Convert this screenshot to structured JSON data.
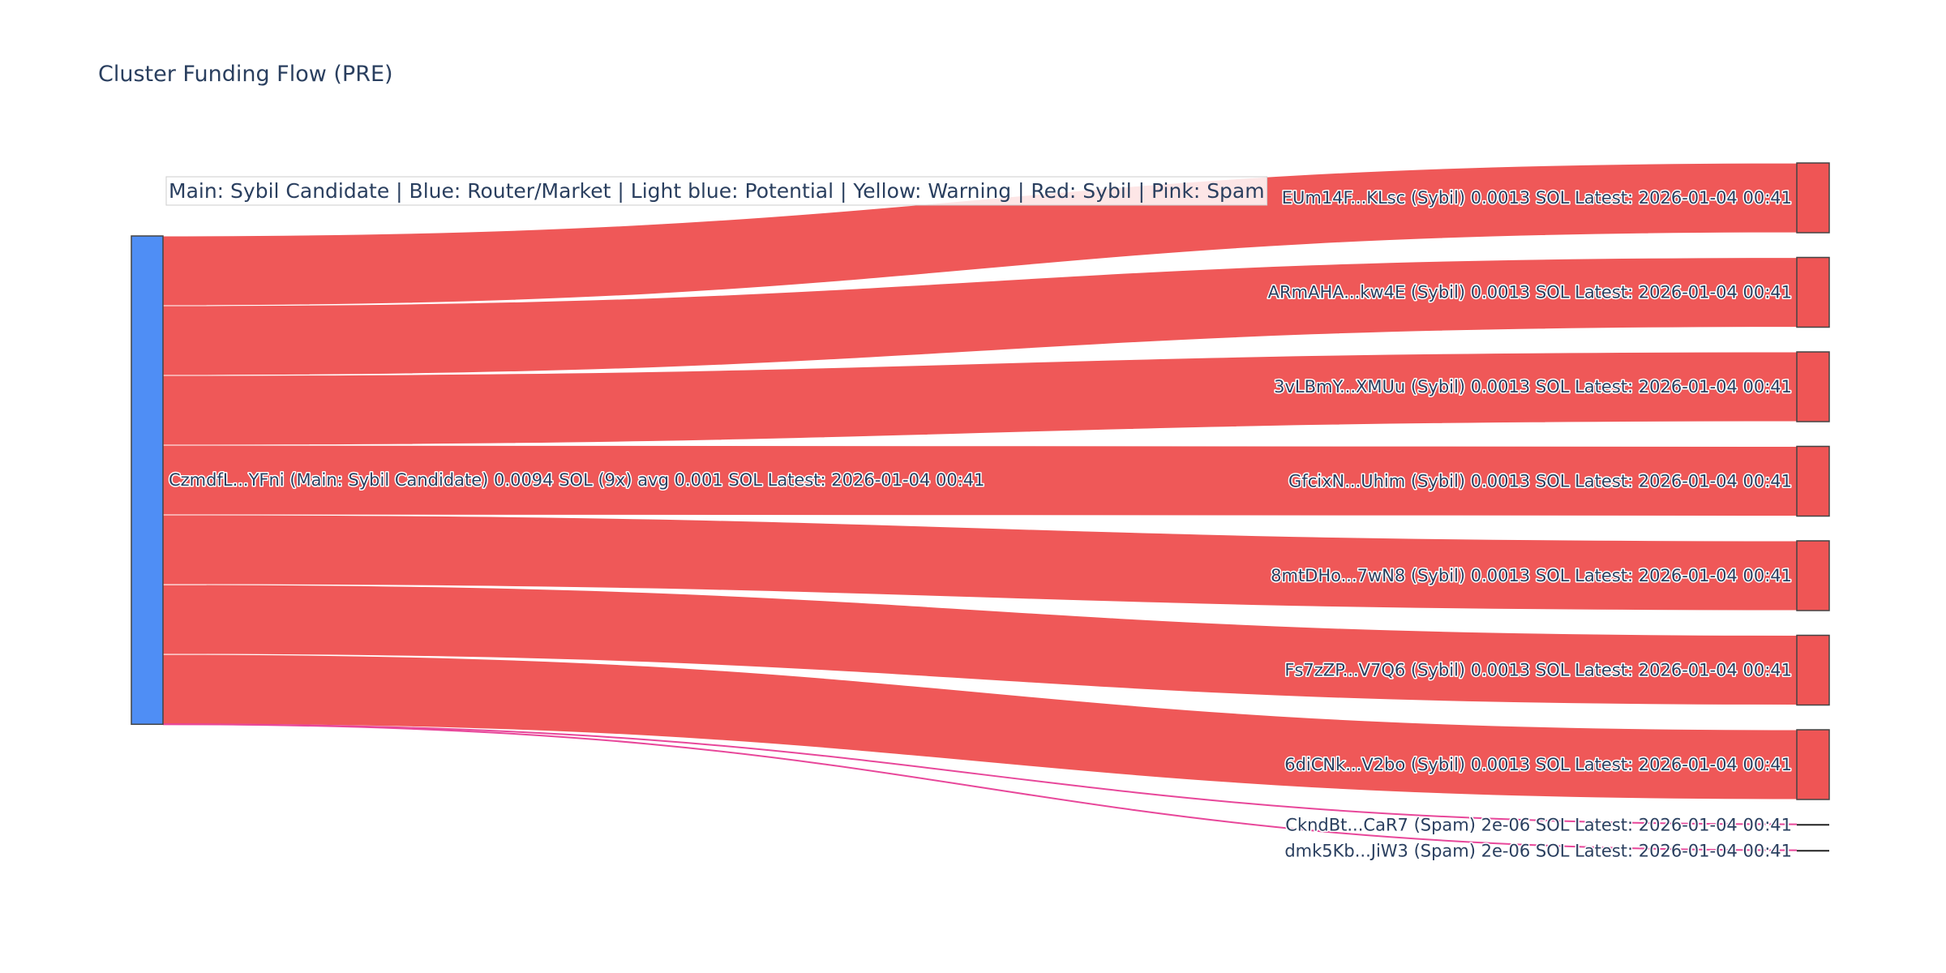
{
  "chart_data": {
    "type": "sankey",
    "title": "Cluster Funding Flow (PRE)",
    "legend_text": "Main: Sybil Candidate  |  Blue: Router/Market | Light blue: Potential | Yellow: Warning | Red: Sybil | Pink: Spam",
    "colors": {
      "main": "#4f8ef5",
      "sybil": "#ef5555",
      "spam": "#e8479a",
      "node_border": "#444444"
    },
    "source": {
      "label": "CzmdfL...YFni (Main: Sybil Candidate) 0.0094 SOL (9x) avg 0.001 SOL Latest: 2026-01-04 00:41",
      "category": "main"
    },
    "targets": [
      {
        "label": "EUm14F...KLsc (Sybil) 0.0013 SOL Latest: 2026-01-04 00:41",
        "value": 0.0013,
        "category": "sybil"
      },
      {
        "label": "ARmAHA...kw4E (Sybil) 0.0013 SOL Latest: 2026-01-04 00:41",
        "value": 0.0013,
        "category": "sybil"
      },
      {
        "label": "3vLBmY...XMUu (Sybil) 0.0013 SOL Latest: 2026-01-04 00:41",
        "value": 0.0013,
        "category": "sybil"
      },
      {
        "label": "GfcixN...Uhim (Sybil) 0.0013 SOL Latest: 2026-01-04 00:41",
        "value": 0.0013,
        "category": "sybil"
      },
      {
        "label": "8mtDHo...7wN8 (Sybil) 0.0013 SOL Latest: 2026-01-04 00:41",
        "value": 0.0013,
        "category": "sybil"
      },
      {
        "label": "Fs7zZP...V7Q6 (Sybil) 0.0013 SOL Latest: 2026-01-04 00:41",
        "value": 0.0013,
        "category": "sybil"
      },
      {
        "label": "6diCNk...V2bo (Sybil) 0.0013 SOL Latest: 2026-01-04 00:41",
        "value": 0.0013,
        "category": "sybil"
      },
      {
        "label": "CkndBt...CaR7 (Spam) 2e-06 SOL Latest: 2026-01-04 00:41",
        "value": 2e-06,
        "category": "spam"
      },
      {
        "label": "dmk5Kb...JiW3 (Spam) 2e-06 SOL Latest: 2026-01-04 00:41",
        "value": 2e-06,
        "category": "spam"
      }
    ]
  }
}
